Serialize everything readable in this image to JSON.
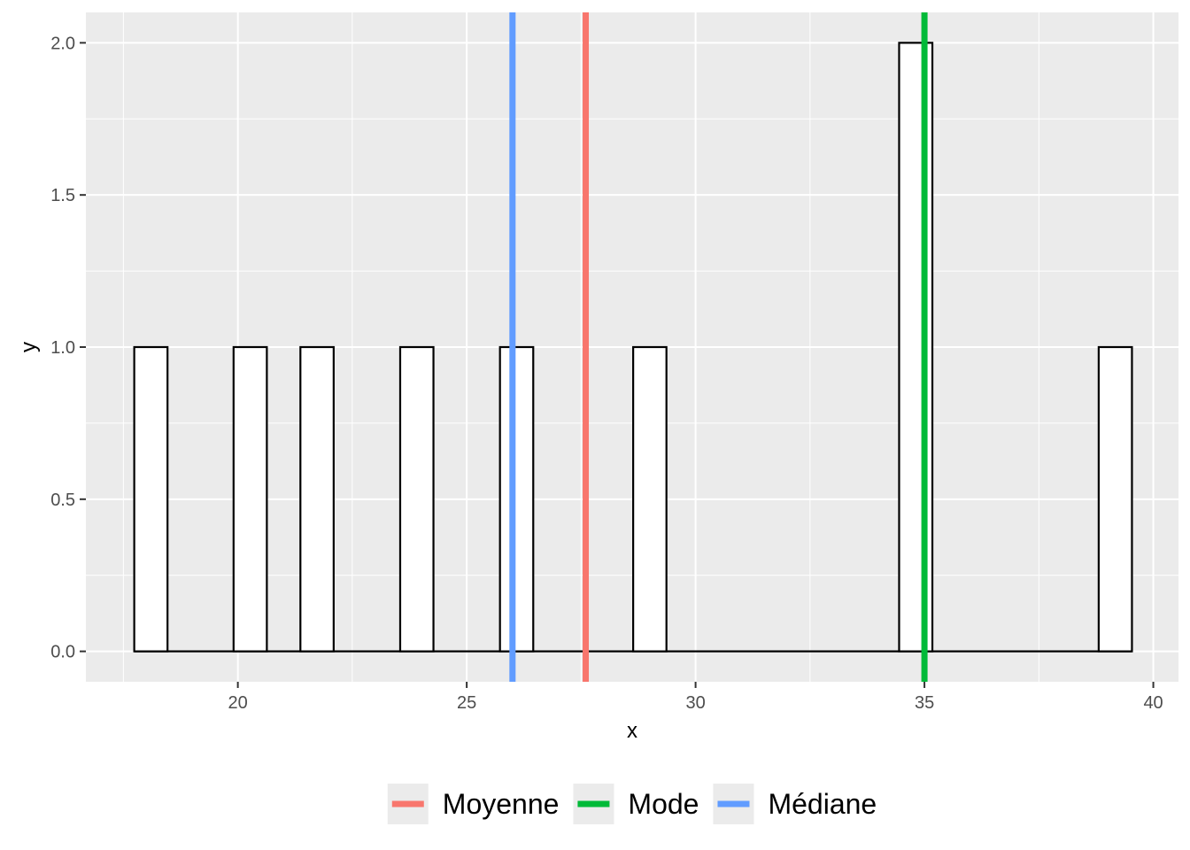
{
  "chart_data": {
    "type": "bar",
    "xlabel": "x",
    "ylabel": "y",
    "xlim": [
      16.68,
      40.55
    ],
    "ylim": [
      -0.1,
      2.1
    ],
    "x_ticks": [
      20,
      25,
      30,
      35,
      40
    ],
    "x_tick_labels": [
      "20",
      "25",
      "30",
      "35",
      "40"
    ],
    "y_ticks": [
      0,
      0.5,
      1,
      1.5,
      2
    ],
    "y_tick_labels": [
      "0.0",
      "0.5",
      "1.0",
      "1.5",
      "2.0"
    ],
    "grid": true,
    "bin_width": 0.7267,
    "bins": [
      {
        "center": 18.1,
        "count": 1
      },
      {
        "center": 20.27,
        "count": 1
      },
      {
        "center": 21.73,
        "count": 1
      },
      {
        "center": 23.91,
        "count": 1
      },
      {
        "center": 26.09,
        "count": 1
      },
      {
        "center": 29.0,
        "count": 1
      },
      {
        "center": 34.81,
        "count": 2
      },
      {
        "center": 39.17,
        "count": 1
      }
    ],
    "bin_range": [
      17.74,
      39.53
    ],
    "vlines": [
      {
        "name": "Moyenne",
        "x": 27.6,
        "color": "#f8766d"
      },
      {
        "name": "Mode",
        "x": 35.0,
        "color": "#00ba38"
      },
      {
        "name": "Médiane",
        "x": 26.0,
        "color": "#619cff"
      }
    ],
    "legend_position": "bottom"
  }
}
